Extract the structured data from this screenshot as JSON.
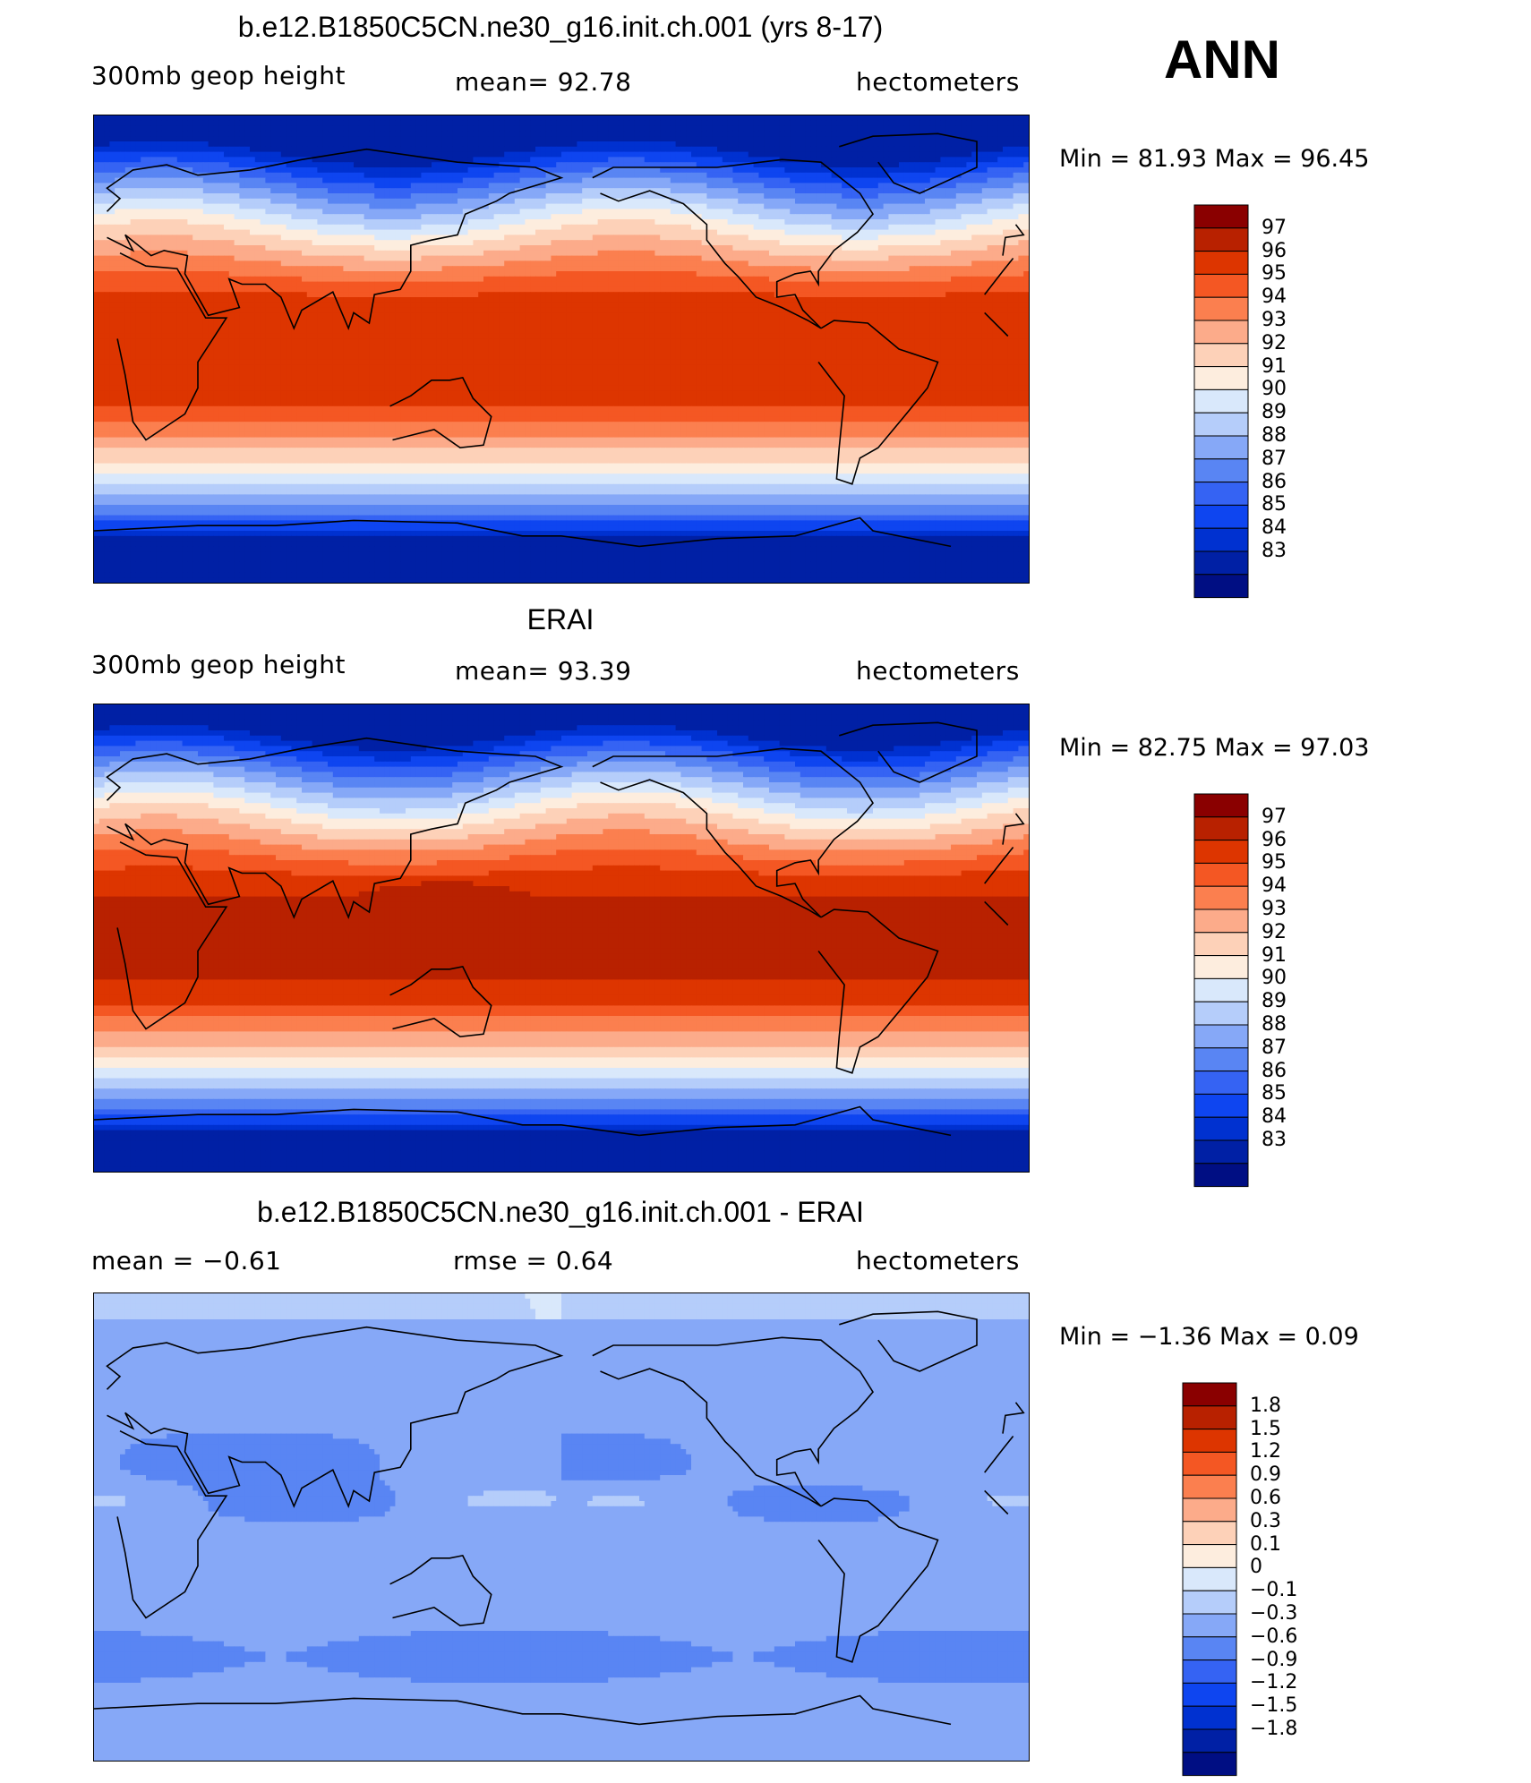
{
  "season": "ANN",
  "colors": {
    "abs_scale": [
      "#000e83",
      "#0020a5",
      "#0031d0",
      "#0e45f0",
      "#3563f3",
      "#5985f3",
      "#86a8f7",
      "#b5cdfa",
      "#d9e8fb",
      "#fdedde",
      "#fdd1b8",
      "#fcab8a",
      "#fb7f4f",
      "#f45723",
      "#dd3500",
      "#b82100",
      "#8a0000"
    ],
    "diff_scale": [
      "#000e83",
      "#0020a5",
      "#0031d0",
      "#0e45f0",
      "#3563f3",
      "#5985f3",
      "#86a8f7",
      "#b5cdfa",
      "#d9e8fb",
      "#fdedde",
      "#fdd1b8",
      "#fcab8a",
      "#fb7f4f",
      "#f45723",
      "#dd3500",
      "#b82100",
      "#8a0000"
    ]
  },
  "panels": [
    {
      "title": "b.e12.B1850C5CN.ne30_g16.init.ch.001 (yrs 8-17)",
      "left_label": "300mb  geop  height",
      "center_label": "mean=   92.78",
      "right_label": "hectometers",
      "minmax": "Min  =    81.93  Max  =    96.45",
      "colorbar_labels": [
        "97",
        "96",
        "95",
        "94",
        "93",
        "92",
        "91",
        "90",
        "89",
        "88",
        "87",
        "86",
        "85",
        "84",
        "83"
      ],
      "field": "model"
    },
    {
      "title": "ERAI",
      "left_label": "300mb  geop  height",
      "center_label": "mean=   93.39",
      "right_label": "hectometers",
      "minmax": "Min  =    82.75  Max  =    97.03",
      "colorbar_labels": [
        "97",
        "96",
        "95",
        "94",
        "93",
        "92",
        "91",
        "90",
        "89",
        "88",
        "87",
        "86",
        "85",
        "84",
        "83"
      ],
      "field": "obs"
    },
    {
      "title": "b.e12.B1850C5CN.ne30_g16.init.ch.001 - ERAI",
      "left_label": "mean  =    −0.61",
      "center_label": "rmse  =     0.64",
      "right_label": "hectometers",
      "minmax": "Min  =   −1.36  Max  =     0.09",
      "colorbar_labels": [
        "1.8",
        "1.5",
        "1.2",
        "0.9",
        "0.6",
        "0.3",
        "0.1",
        "0",
        "−0.1",
        "−0.3",
        "−0.6",
        "−0.9",
        "−1.2",
        "−1.5",
        "−1.8"
      ],
      "field": "diff"
    }
  ]
}
